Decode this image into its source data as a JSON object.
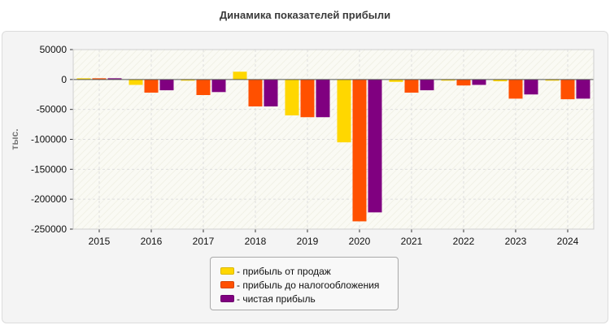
{
  "title": "Динамика показателей прибыли",
  "chart_data": {
    "type": "bar",
    "categories": [
      "2015",
      "2016",
      "2017",
      "2018",
      "2019",
      "2020",
      "2021",
      "2022",
      "2023",
      "2024"
    ],
    "ylabel": "тыс.",
    "ylim": [
      -250000,
      50000
    ],
    "yticks": [
      50000,
      0,
      -50000,
      -100000,
      -150000,
      -200000,
      -250000
    ],
    "grid": true,
    "legend_position": "bottom",
    "series": [
      {
        "name": "- прибыль от продаж",
        "color": "#ffd700",
        "values": [
          2000,
          -9000,
          -2000,
          13000,
          -60000,
          -105000,
          -4000,
          -2000,
          -3000,
          -2000
        ]
      },
      {
        "name": "- прибыль до налогообложения",
        "color": "#ff5000",
        "values": [
          2000,
          -22000,
          -26000,
          -45000,
          -63000,
          -237000,
          -22000,
          -10000,
          -32000,
          -33000
        ]
      },
      {
        "name": "- чистая прибыль",
        "color": "#800080",
        "values": [
          2000,
          -18000,
          -21000,
          -45000,
          -63000,
          -222000,
          -18000,
          -9000,
          -25000,
          -32000
        ]
      }
    ]
  }
}
